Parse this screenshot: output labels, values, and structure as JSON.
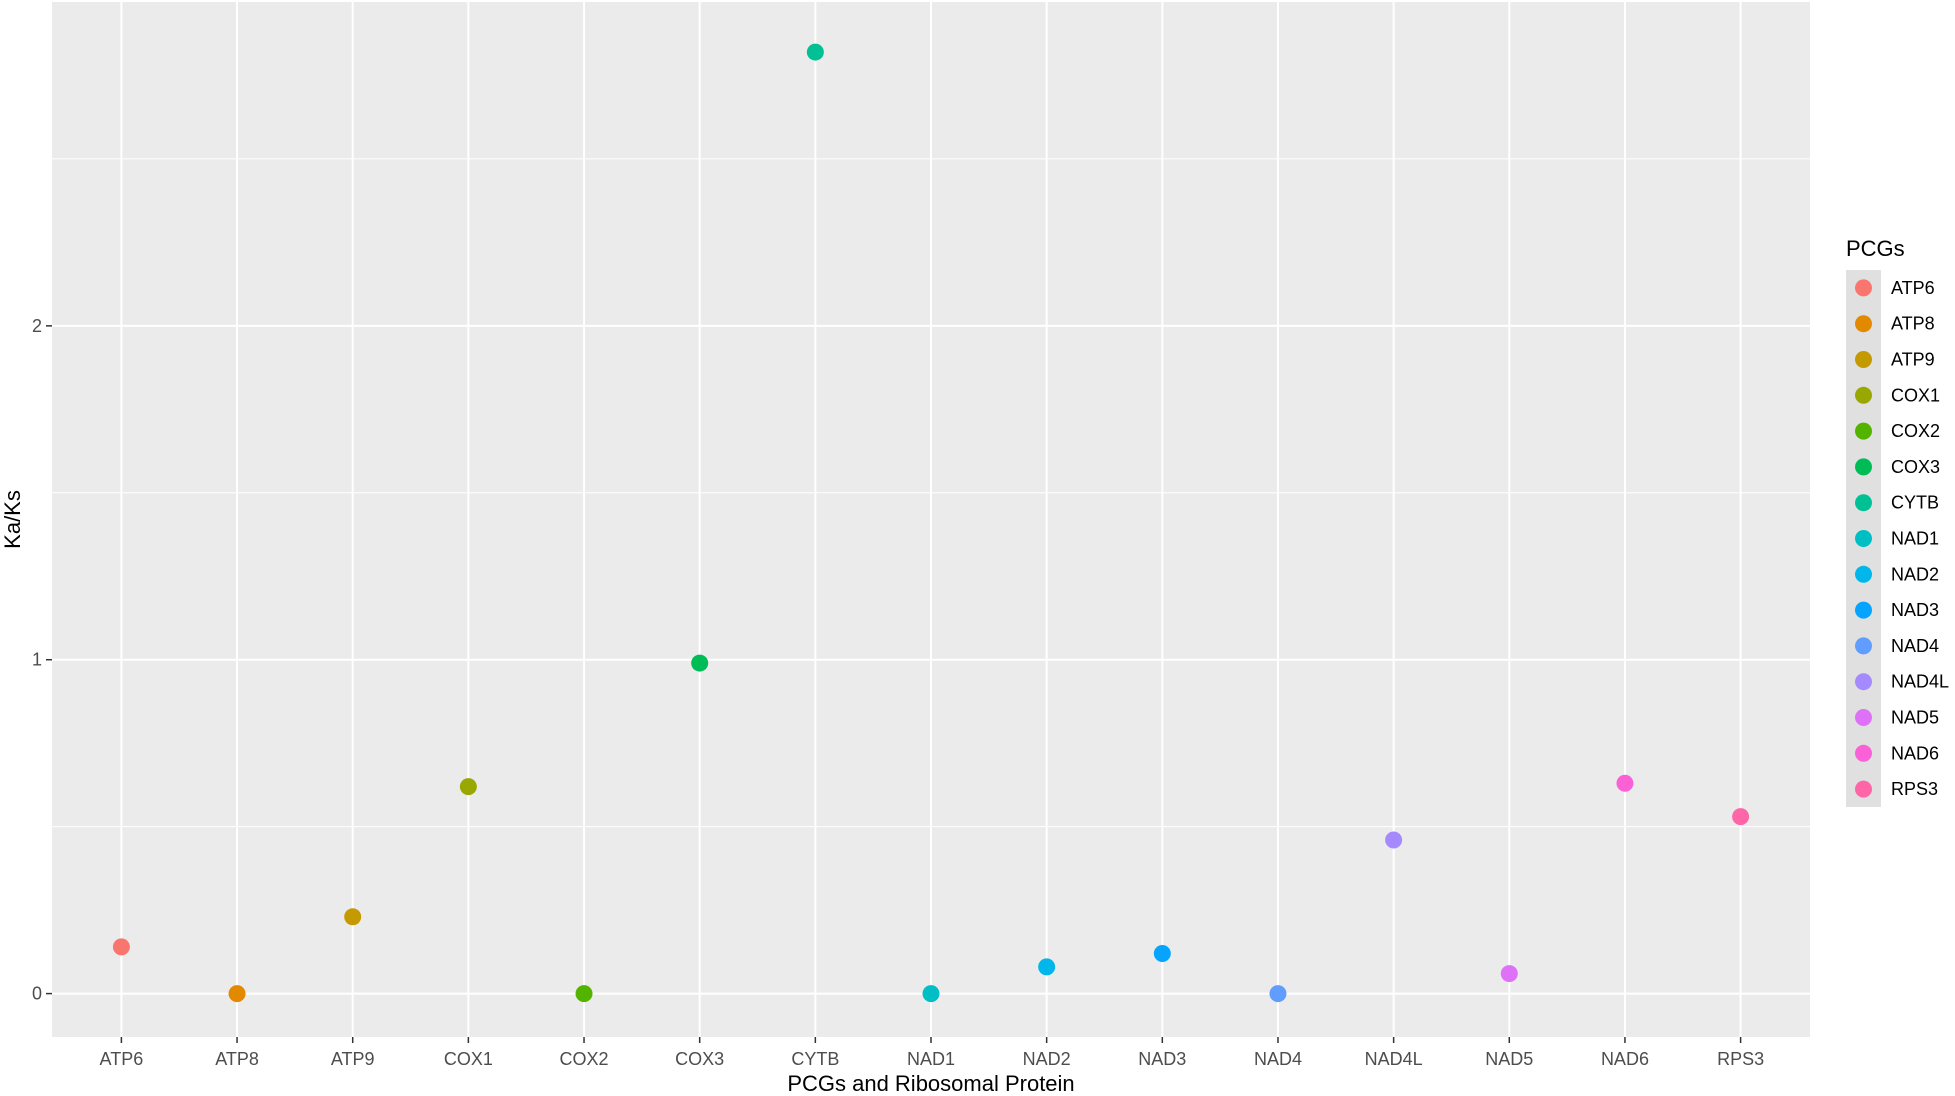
{
  "chart_data": {
    "type": "scatter",
    "title": "",
    "xlabel": "PCGs and Ribosomal Protein",
    "ylabel": "Ka/Ks",
    "categories": [
      "ATP6",
      "ATP8",
      "ATP9",
      "COX1",
      "COX2",
      "COX3",
      "CYTB",
      "NAD1",
      "NAD2",
      "NAD3",
      "NAD4",
      "NAD4L",
      "NAD5",
      "NAD6",
      "RPS3"
    ],
    "values": [
      0.14,
      0.0,
      0.23,
      0.62,
      0.0,
      0.99,
      2.82,
      0.0,
      0.08,
      0.12,
      0.0,
      0.46,
      0.06,
      0.63,
      0.53
    ],
    "colors": [
      "#F8766D",
      "#E38900",
      "#C49A00",
      "#99A800",
      "#53B400",
      "#00BC56",
      "#00C094",
      "#00BFC4",
      "#00B6EB",
      "#06A4FF",
      "#A58AFF",
      "#DF70F8",
      "#FB61D7",
      "#FF66A8",
      "#FF6C91"
    ],
    "colors_by_category": {
      "ATP6": "#F8766D",
      "ATP8": "#E38900",
      "ATP9": "#C49A00",
      "COX1": "#99A800",
      "COX2": "#53B400",
      "COX3": "#00BC56",
      "CYTB": "#00C094",
      "NAD1": "#00BFC4",
      "NAD2": "#00B6EB",
      "NAD3": "#06A4FF",
      "NAD4": "#619CFF",
      "NAD4L": "#A58AFF",
      "NAD5": "#DF70F8",
      "NAD6": "#FB61D7",
      "RPS3": "#FF66A8"
    },
    "yticks": [
      0,
      1,
      2
    ],
    "ylim": [
      -0.13,
      2.97
    ],
    "grid": true,
    "legend": {
      "title": "PCGs",
      "position": "right",
      "entries": [
        "ATP6",
        "ATP8",
        "ATP9",
        "COX1",
        "COX2",
        "COX3",
        "CYTB",
        "NAD1",
        "NAD2",
        "NAD3",
        "NAD4",
        "NAD4L",
        "NAD5",
        "NAD6",
        "RPS3"
      ]
    }
  }
}
